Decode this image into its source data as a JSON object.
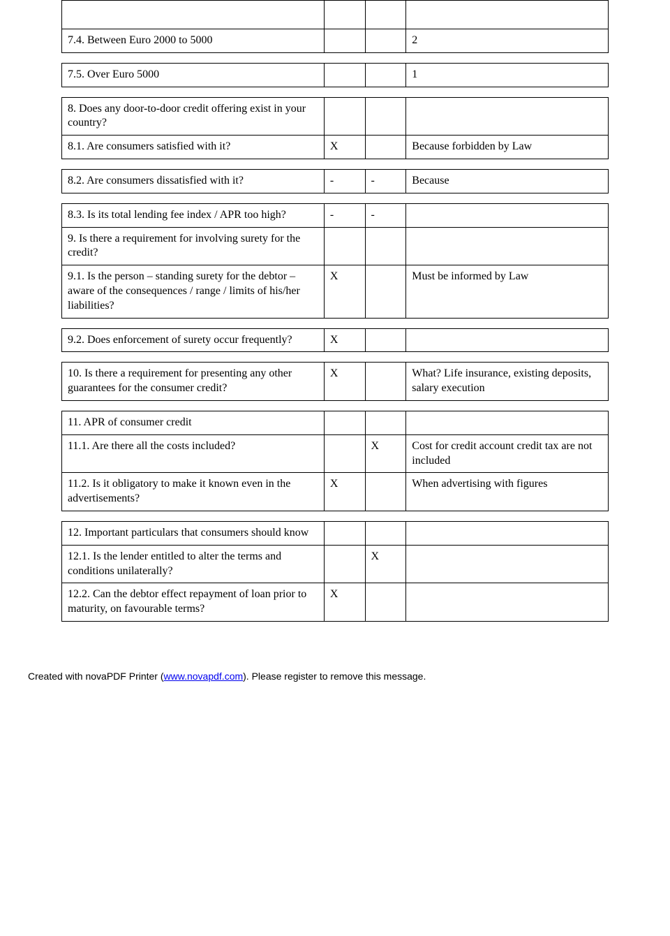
{
  "rows": [
    {
      "q": "",
      "a": "",
      "b": "",
      "c": "",
      "class": "empty-row"
    },
    {
      "q": "7.4. Between Euro 2000 to 5000",
      "a": "",
      "b": "",
      "c": "2"
    },
    {
      "spacer": true
    },
    {
      "q": "7.5. Over Euro 5000",
      "a": "",
      "b": "",
      "c": "1"
    },
    {
      "spacer": true
    },
    {
      "q": "8. Does any door-to-door credit offering exist in your country?",
      "a": "",
      "b": "",
      "c": ""
    },
    {
      "q": "8.1. Are consumers satisfied with it?",
      "a": "X",
      "b": "",
      "c": "Because forbidden by Law"
    },
    {
      "spacer": true
    },
    {
      "q": "8.2. Are consumers dissatisfied with it?",
      "a": "-",
      "b": "-",
      "c": "Because"
    },
    {
      "spacer": true
    },
    {
      "q": "8.3. Is its total lending fee index / APR too high?",
      "a": "-",
      "b": "-",
      "c": ""
    },
    {
      "q": "9. Is there a requirement for involving surety for the credit?",
      "a": "",
      "b": "",
      "c": ""
    },
    {
      "q": "9.1. Is the person – standing surety for the debtor – aware of the consequences / range / limits of his/her liabilities?",
      "a": "X",
      "b": "",
      "c": "Must be informed by Law"
    },
    {
      "spacer": true
    },
    {
      "q": "9.2. Does enforcement of surety occur frequently?",
      "a": "X",
      "b": "",
      "c": ""
    },
    {
      "spacer": true
    },
    {
      "q": "10. Is there a requirement for presenting any other guarantees for the consumer credit?",
      "a": "X",
      "b": "",
      "c": "What? Life insurance, existing deposits, salary execution"
    },
    {
      "spacer": true
    },
    {
      "q": "11. APR of consumer credit",
      "a": "",
      "b": "",
      "c": ""
    },
    {
      "q": "11.1. Are there all the costs included?",
      "a": "",
      "b": "X",
      "c": "Cost for credit account credit tax are not included"
    },
    {
      "q": "11.2. Is it obligatory to make it known even in the advertisements?",
      "a": "X",
      "b": "",
      "c": "When advertising with figures"
    },
    {
      "spacer": true
    },
    {
      "q": "12. Important particulars that consumers should know",
      "a": "",
      "b": "",
      "c": ""
    },
    {
      "q": "12.1. Is the lender entitled to alter the terms and conditions unilaterally?",
      "a": "",
      "b": "X",
      "c": ""
    },
    {
      "q": "12.2. Can the debtor effect repayment of loan prior to maturity, on favourable terms?",
      "a": "X",
      "b": "",
      "c": ""
    }
  ],
  "footer": {
    "pre": "Created with novaPDF Printer (",
    "link_text": "www.novapdf.com",
    "link_href": "http://www.novapdf.com",
    "post": "). Please register to remove this message."
  }
}
